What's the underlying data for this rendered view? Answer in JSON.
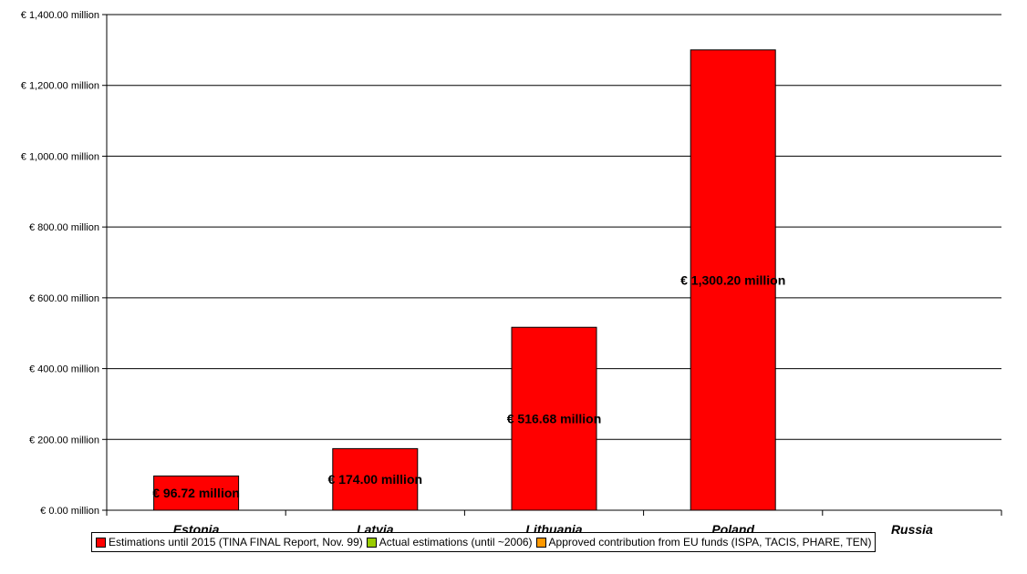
{
  "chart_data": {
    "type": "bar",
    "title": "",
    "xlabel": "",
    "ylabel": "",
    "categories": [
      "Estonia",
      "Latvia",
      "Lithuania",
      "Poland",
      "Russia"
    ],
    "series": [
      {
        "name": "Estimations until 2015 (TINA FINAL Report, Nov. 99)",
        "color": "#ff0000",
        "values": [
          96.72,
          174.0,
          516.68,
          1300.2,
          null
        ],
        "labels": [
          "€ 96.72 million",
          "€ 174.00 million",
          "€ 516.68 million",
          "€ 1,300.20 million",
          ""
        ]
      },
      {
        "name": "Actual estimations (until ~2006)",
        "color": "#99cc00",
        "values": [
          null,
          null,
          null,
          null,
          null
        ],
        "labels": [
          "",
          "",
          "",
          "",
          ""
        ]
      },
      {
        "name": "Approved contribution from EU funds (ISPA, TACIS, PHARE, TEN)",
        "color": "#ff9900",
        "values": [
          null,
          null,
          null,
          null,
          null
        ],
        "labels": [
          "",
          "",
          "",
          "",
          ""
        ]
      }
    ],
    "ylim": [
      0,
      1400
    ],
    "yticks": [
      0,
      200,
      400,
      600,
      800,
      1000,
      1200,
      1400
    ],
    "ytick_labels": [
      "€ 0.00 million",
      "€ 200.00 million",
      "€ 400.00 million",
      "€ 600.00 million",
      "€ 800.00 million",
      "€ 1,000.00 million",
      "€ 1,200.00 million",
      "€ 1,400.00 million"
    ],
    "grid": true,
    "legend_position": "bottom"
  }
}
